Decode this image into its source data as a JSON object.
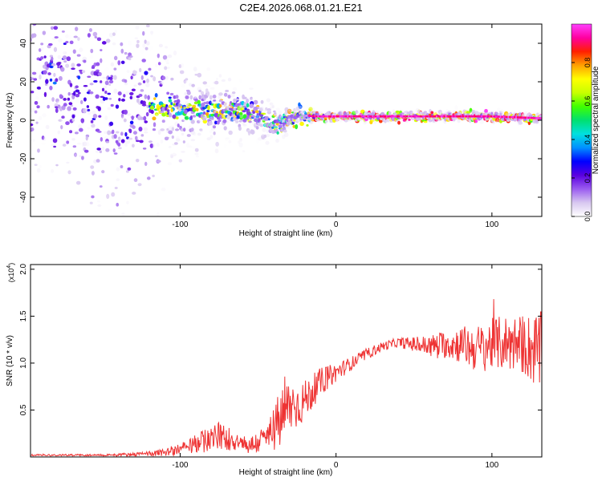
{
  "title": "C2E4.2026.068.01.21.E21",
  "chart_data": [
    {
      "type": "heatmap",
      "title": "C2E4.2026.068.01.21.E21",
      "xlabel": "Height of straight line (km)",
      "ylabel": "Frequency (Hz)",
      "xlim": [
        -196,
        132
      ],
      "ylim": [
        -50,
        50
      ],
      "xticks": [
        -100,
        0,
        100
      ],
      "yticks": [
        -40,
        -20,
        0,
        20,
        40
      ],
      "colorbar": {
        "label": "Normalized spectral amplitude",
        "range": [
          0,
          1
        ],
        "ticks": [
          "0.0",
          "0.2",
          "0.4",
          "0.6",
          "0.8"
        ],
        "colors": [
          "#ffffff",
          "#d8c8f0",
          "#9a5cf0",
          "#5a00e0",
          "#0000ff",
          "#0090ff",
          "#00e0e0",
          "#00e070",
          "#40ff00",
          "#c8ff00",
          "#ffff00",
          "#ffa000",
          "#ff2000",
          "#ff00a0",
          "#ff40ff"
        ]
      },
      "ridge": {
        "x": [
          -196,
          -170,
          -150,
          -130,
          -110,
          -90,
          -70,
          -55,
          -45,
          -35,
          -25,
          -15,
          0,
          50,
          100,
          132
        ],
        "frequency": [
          25,
          18,
          10,
          7,
          6,
          5,
          5,
          4,
          0,
          -2,
          3,
          2,
          2,
          2,
          2,
          1
        ]
      }
    },
    {
      "type": "line",
      "xlabel": "Height of straight line (km)",
      "ylabel": "SNR (10 * v/v)",
      "y_multiplier": "(x10",
      "y_multiplier_exp": "4",
      "y_multiplier_close": ")",
      "xlim": [
        -196,
        132
      ],
      "ylim": [
        0,
        2.05
      ],
      "xticks": [
        -100,
        0,
        100
      ],
      "yticks": [
        0.5,
        1.0,
        1.5,
        2.0
      ],
      "ytick_labels": [
        "0.5",
        "1.0",
        "1.5",
        "2.0"
      ],
      "series": [
        {
          "name": "SNR",
          "color": "#ee3333",
          "envelope_x": [
            -196,
            -150,
            -125,
            -110,
            -95,
            -85,
            -75,
            -65,
            -55,
            -45,
            -35,
            -30,
            -25,
            -20,
            -15,
            -10,
            0,
            10,
            20,
            30,
            40,
            50,
            60,
            70,
            80,
            90,
            100,
            110,
            120,
            132
          ],
          "envelope_mean": [
            0.02,
            0.02,
            0.03,
            0.05,
            0.1,
            0.18,
            0.22,
            0.18,
            0.12,
            0.2,
            0.4,
            0.55,
            0.55,
            0.6,
            0.7,
            0.8,
            0.9,
            1.0,
            1.1,
            1.18,
            1.22,
            1.2,
            1.18,
            1.2,
            1.2,
            1.15,
            1.2,
            1.22,
            1.2,
            1.1
          ],
          "envelope_noise": [
            0.01,
            0.01,
            0.02,
            0.04,
            0.08,
            0.12,
            0.15,
            0.12,
            0.1,
            0.15,
            0.35,
            0.3,
            0.25,
            0.22,
            0.18,
            0.15,
            0.1,
            0.07,
            0.06,
            0.05,
            0.05,
            0.08,
            0.12,
            0.15,
            0.2,
            0.25,
            0.28,
            0.3,
            0.32,
            0.45
          ]
        }
      ]
    }
  ]
}
